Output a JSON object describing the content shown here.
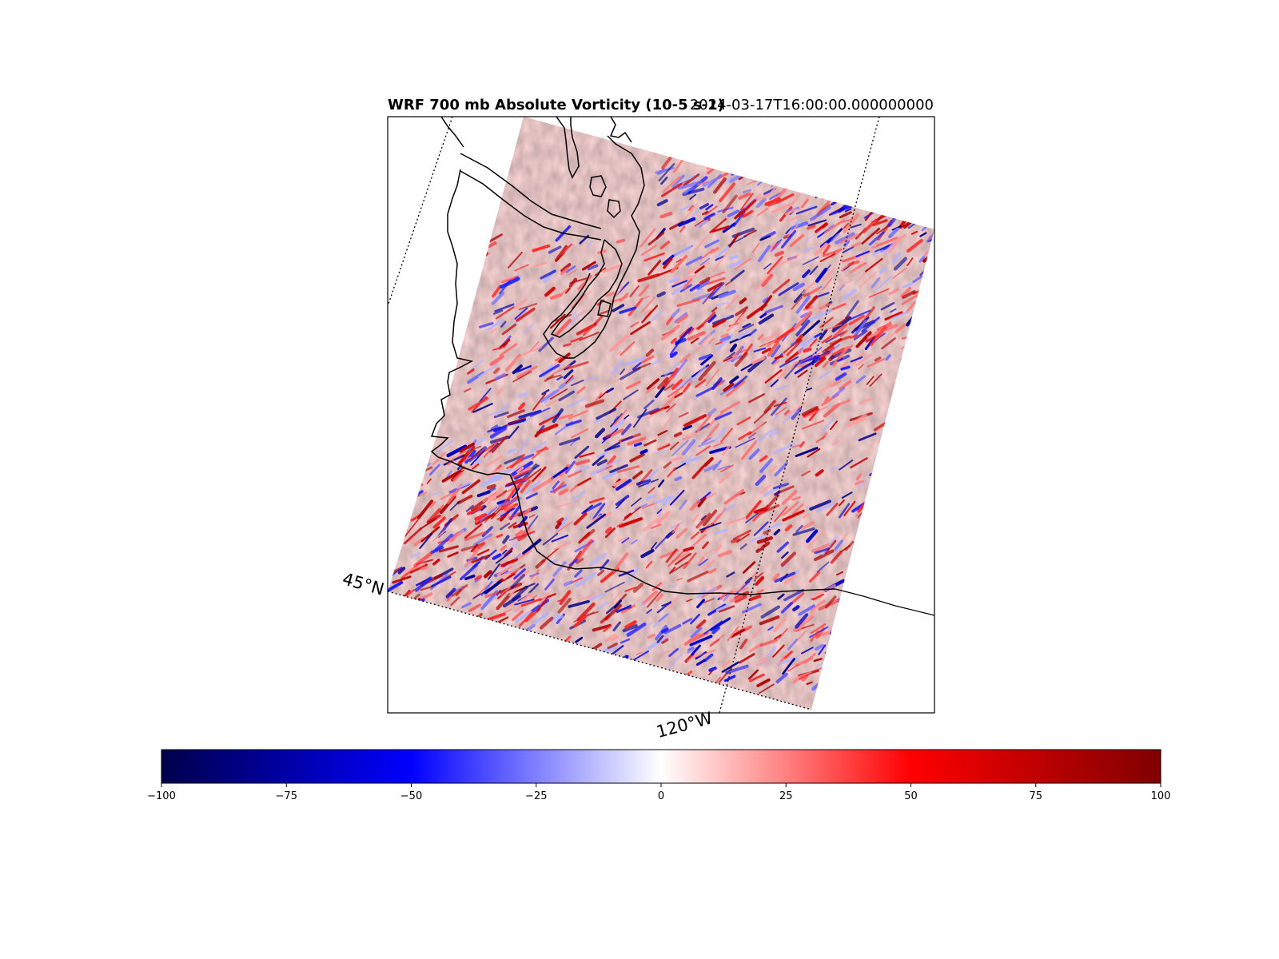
{
  "figure": {
    "title_left": "WRF 700 mb Absolute Vorticity (10-5 s-1)",
    "title_right": "2024-03-17T16:00:00.000000000"
  },
  "map": {
    "projection": "Lambert Conformal",
    "grid_labels": {
      "lat": "45°N",
      "lon": "120°W"
    },
    "gridline_style": "dotted",
    "coastline_color": "#000000",
    "field": "700 mb Absolute Vorticity",
    "colormap": "seismic"
  },
  "colorbar": {
    "orientation": "horizontal",
    "vmin": -100,
    "vmax": 100,
    "ticks": [
      -100,
      -75,
      -50,
      -25,
      0,
      25,
      50,
      75,
      100
    ],
    "tick_labels": [
      "−100",
      "−75",
      "−50",
      "−25",
      "0",
      "25",
      "50",
      "75",
      "100"
    ],
    "colors": [
      "#00004c",
      "#0000ff",
      "#ffffff",
      "#ff0000",
      "#7f0000"
    ]
  }
}
